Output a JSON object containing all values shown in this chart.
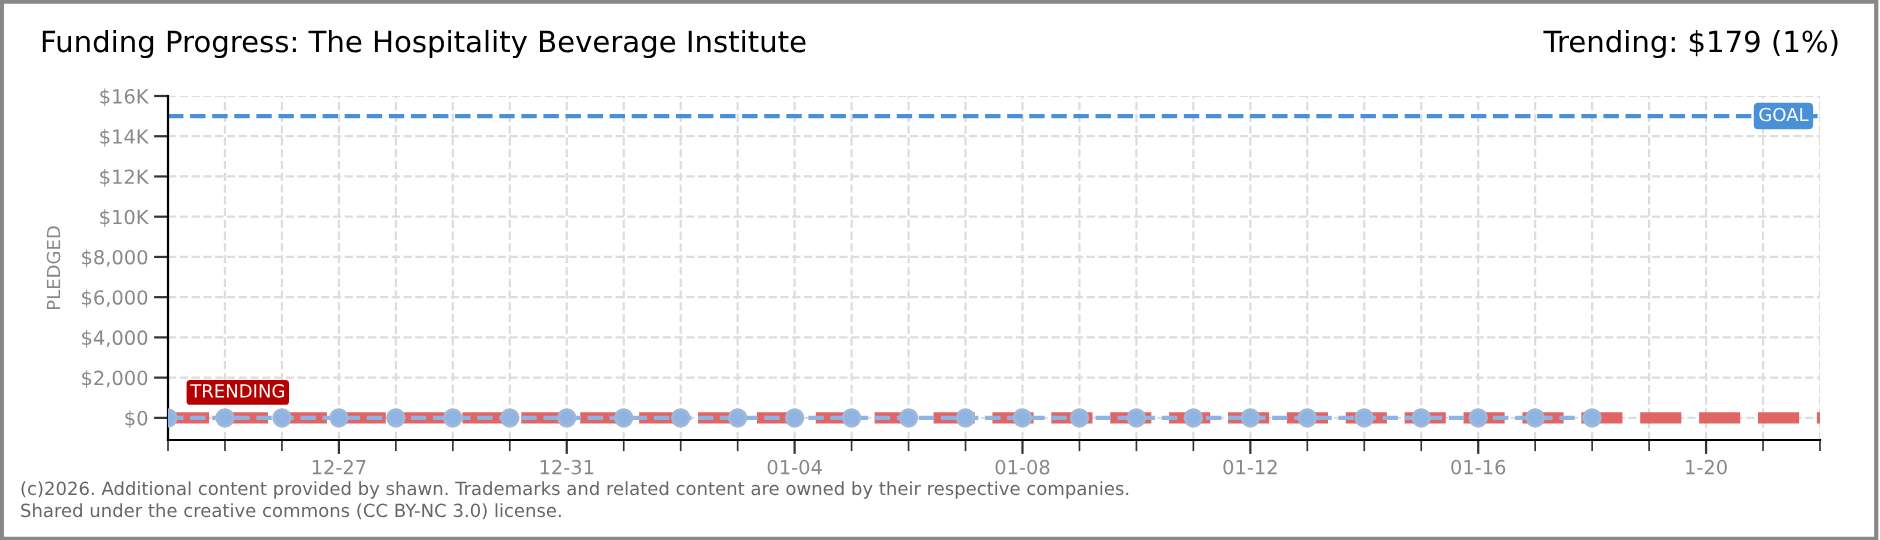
{
  "chart_data": {
    "type": "line",
    "title": "Funding Progress: The Hospitality Beverage Institute",
    "subtitle": "Trending: $179 (1%)",
    "ylabel": "PLEDGED",
    "series": [
      {
        "name": null,
        "color": "#e06666",
        "line_style": "dashed",
        "marker": "none",
        "x": [
          "2025-12-24",
          "2026-01-22"
        ],
        "values": [
          0,
          0
        ]
      },
      {
        "name": null,
        "color": "#8fb4e3",
        "line_style": "dashed",
        "marker": "circle",
        "x": [
          "2025-12-24",
          "2025-12-25",
          "2025-12-26",
          "2025-12-27",
          "2025-12-28",
          "2025-12-29",
          "2025-12-30",
          "2025-12-31",
          "2026-01-01",
          "2026-01-02",
          "2026-01-03",
          "2026-01-04",
          "2026-01-05",
          "2026-01-06",
          "2026-01-07",
          "2026-01-08",
          "2026-01-09",
          "2026-01-10",
          "2026-01-11",
          "2026-01-12",
          "2026-01-13",
          "2026-01-14",
          "2026-01-15",
          "2026-01-16",
          "2026-01-17",
          "2026-01-18"
        ],
        "values": [
          0,
          0,
          0,
          0,
          0,
          0,
          0,
          0,
          0,
          0,
          0,
          0,
          0,
          0,
          0,
          0,
          0,
          0,
          0,
          0,
          0,
          0,
          0,
          0,
          0,
          0
        ]
      }
    ],
    "xlim": [
      "2025-12-24",
      "2026-01-22"
    ],
    "ylim": [
      -1100,
      16000
    ],
    "xticks": [
      {
        "value": "2025-12-27",
        "label": "12-27"
      },
      {
        "value": "2025-12-31",
        "label": "12-31"
      },
      {
        "value": "2026-01-04",
        "label": "01-04"
      },
      {
        "value": "2026-01-08",
        "label": "01-08"
      },
      {
        "value": "2026-01-12",
        "label": "01-12"
      },
      {
        "value": "2026-01-16",
        "label": "01-16"
      },
      {
        "value": "2026-01-20",
        "label": "1-20"
      }
    ],
    "yticks": [
      {
        "value": 0,
        "label": "$0"
      },
      {
        "value": 2000,
        "label": "$2,000"
      },
      {
        "value": 4000,
        "label": "$4,000"
      },
      {
        "value": 6000,
        "label": "$6,000"
      },
      {
        "value": 8000,
        "label": "$8,000"
      },
      {
        "value": 10000,
        "label": "$10K"
      },
      {
        "value": 12000,
        "label": "$12K"
      },
      {
        "value": 14000,
        "label": "$14K"
      },
      {
        "value": 16000,
        "label": "$16K"
      }
    ],
    "ref_lines": [
      {
        "axis": "y",
        "value": 15000,
        "label": "GOAL",
        "color": "#4a90d9",
        "line_style": "dashed"
      }
    ],
    "annotations": [
      {
        "text": "TRENDING",
        "x": "2025-12-24",
        "y": 0
      },
      "(c)2026. Additional content provided by shawn. Trademarks and related content are owned by their respective companies.",
      "Shared under the creative commons (CC BY-NC 3.0) license."
    ],
    "grid": true,
    "legend": false
  }
}
